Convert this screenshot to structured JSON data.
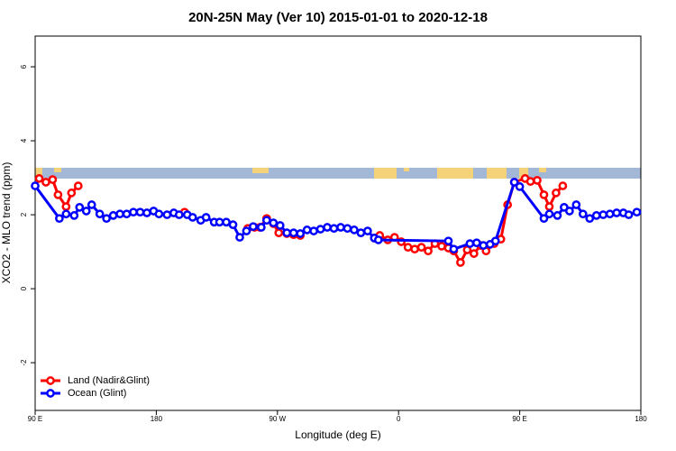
{
  "chart_data": {
    "type": "line",
    "title": "20N-25N May (Ver 10)   2015-01-01 to 2020-12-18",
    "x_label": "Longitude (deg E)",
    "y_label": "XCO2 - MLO trend (ppm)",
    "xlim": [
      90,
      540
    ],
    "xticks": [
      {
        "value": 90,
        "label": "90 E"
      },
      180,
      {
        "value": 270,
        "label": "90 W"
      },
      {
        "value": 360,
        "label": "0"
      },
      {
        "value": 450,
        "label": "90 E"
      },
      {
        "value": 540,
        "label": "180"
      }
    ],
    "ylim": [
      -3.29,
      6.83
    ],
    "yticks": [
      -2,
      0,
      2,
      4,
      6
    ],
    "legend": "bottom-left",
    "series": [
      {
        "name": "Land (Nadir&Glint)",
        "color": "#ff0000",
        "x": [
          93,
          98,
          103,
          107,
          113,
          117,
          122,
          127,
          201,
          206,
          248,
          253,
          257,
          262,
          267,
          271,
          277,
          282,
          287,
          292,
          342,
          346,
          352,
          357,
          362,
          367,
          372,
          377,
          382,
          387,
          392,
          397,
          401,
          406,
          411,
          416,
          421,
          425,
          431,
          436,
          441,
          446,
          454,
          458,
          463,
          468,
          472,
          477,
          482
        ],
        "values": [
          2.98,
          2.88,
          2.95,
          2.54,
          2.22,
          2.59,
          2.78,
          null,
          2.07,
          null,
          1.63,
          1.66,
          1.66,
          1.9,
          1.76,
          1.51,
          1.49,
          1.46,
          1.44,
          null,
          1.37,
          1.44,
          1.32,
          1.39,
          1.27,
          1.12,
          1.07,
          1.12,
          1.02,
          1.22,
          1.15,
          1.1,
          1.02,
          0.71,
          1.05,
          0.95,
          1.17,
          1.02,
          1.22,
          1.34,
          2.27,
          2.88,
          2.98,
          2.9,
          2.93,
          2.54,
          2.22,
          2.59,
          2.78
        ]
      },
      {
        "name": "Ocean (Glint)",
        "color": "#0000ff",
        "x": [
          90,
          108,
          113,
          119,
          123,
          128,
          132,
          138,
          143,
          148,
          153,
          158,
          163,
          168,
          173,
          178,
          182,
          188,
          193,
          197,
          203,
          207,
          213,
          217,
          223,
          227,
          232,
          237,
          242,
          247,
          252,
          258,
          262,
          267,
          272,
          277,
          282,
          287,
          292,
          297,
          302,
          307,
          312,
          317,
          322,
          327,
          332,
          337,
          342,
          345,
          397,
          401,
          413,
          418,
          423,
          428,
          432,
          446,
          450,
          468,
          472,
          478,
          483,
          487,
          492,
          497,
          502,
          507,
          512,
          517,
          522,
          527,
          531,
          537
        ],
        "values": [
          2.78,
          1.9,
          2.02,
          1.98,
          2.2,
          2.1,
          2.27,
          2.02,
          1.9,
          1.98,
          2.02,
          2.02,
          2.07,
          2.07,
          2.05,
          2.1,
          2.02,
          2.0,
          2.05,
          2.0,
          2.0,
          1.93,
          1.85,
          1.93,
          1.8,
          1.8,
          1.8,
          1.73,
          1.39,
          1.56,
          1.68,
          1.66,
          1.85,
          1.78,
          1.71,
          1.51,
          1.51,
          1.49,
          1.59,
          1.56,
          1.61,
          1.66,
          1.63,
          1.66,
          1.63,
          1.59,
          1.51,
          1.56,
          1.37,
          1.32,
          1.29,
          1.07,
          1.22,
          1.24,
          1.17,
          1.2,
          1.29,
          2.88,
          2.76,
          1.9,
          2.02,
          1.98,
          2.2,
          2.1,
          2.27,
          2.02,
          1.9,
          1.98,
          2.0,
          2.02,
          2.05,
          2.05,
          2.0,
          2.07
        ]
      }
    ]
  }
}
